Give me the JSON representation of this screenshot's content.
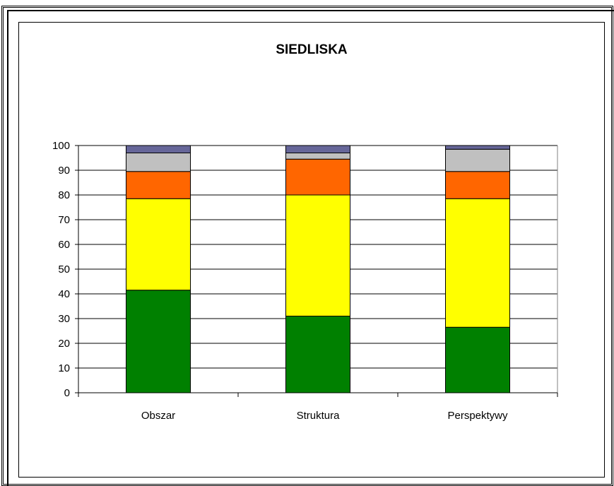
{
  "chart_data": {
    "type": "bar",
    "stacked": true,
    "title": "SIEDLISKA",
    "xlabel": "",
    "ylabel": "",
    "ylim": [
      0,
      100
    ],
    "yticks": [
      "0",
      "10",
      "20",
      "30",
      "40",
      "50",
      "60",
      "70",
      "80",
      "90",
      "100"
    ],
    "categories": [
      "Obszar",
      "Struktura",
      "Perspektywy"
    ],
    "grid": true,
    "legend": "none",
    "series": [
      {
        "color": "#008000",
        "values": [
          41.5,
          31,
          26.5
        ]
      },
      {
        "color": "#ffff00",
        "values": [
          37,
          49,
          52
        ]
      },
      {
        "color": "#ff6600",
        "values": [
          11,
          14.5,
          11
        ]
      },
      {
        "color": "#c0c0c0",
        "values": [
          7.5,
          2.5,
          9
        ]
      },
      {
        "color": "#666699",
        "values": [
          3,
          3,
          1.5
        ]
      }
    ]
  }
}
